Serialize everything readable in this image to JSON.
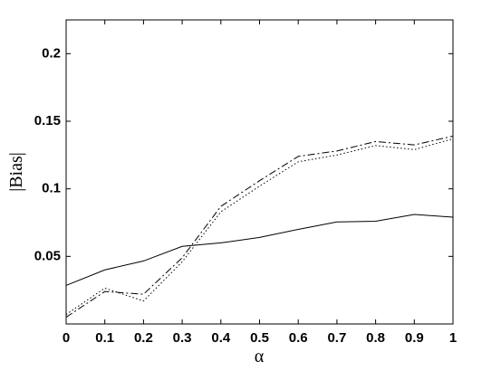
{
  "chart_data": {
    "type": "line",
    "x_label": "α",
    "y_label": "|Bias|",
    "x": [
      0,
      0.1,
      0.2,
      0.3,
      0.4,
      0.5,
      0.6,
      0.7,
      0.8,
      0.9,
      1
    ],
    "series": [
      {
        "color": "#000000",
        "dash": "solid",
        "values": [
          0.0285,
          0.04,
          0.0466,
          0.0574,
          0.06,
          0.064,
          0.07,
          0.0755,
          0.076,
          0.081,
          0.079
        ]
      },
      {
        "color": "#000000",
        "dash": "dashdot",
        "values": [
          0.005,
          0.024,
          0.022,
          0.049,
          0.087,
          0.106,
          0.124,
          0.128,
          0.135,
          0.1325,
          0.139
        ]
      },
      {
        "color": "#000000",
        "dash": "dotted",
        "values": [
          0.007,
          0.0265,
          0.017,
          0.046,
          0.083,
          0.102,
          0.12,
          0.125,
          0.132,
          0.129,
          0.137
        ]
      }
    ],
    "xlim": [
      0,
      1
    ],
    "xticks": [
      0,
      0.1,
      0.2,
      0.3,
      0.4,
      0.5,
      0.6,
      0.7,
      0.8,
      0.9,
      1
    ],
    "ylim": [
      0,
      0.225
    ],
    "yticks": [
      0.05,
      0.1,
      0.15,
      0.2
    ],
    "grid": false
  }
}
